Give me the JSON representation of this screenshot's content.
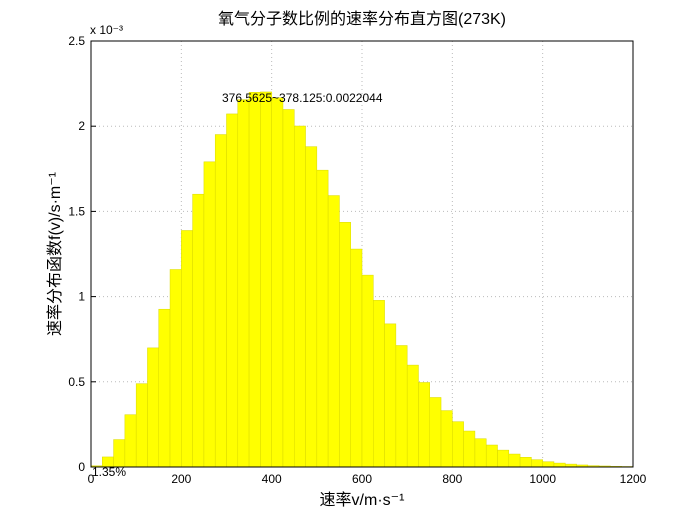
{
  "chart_data": {
    "type": "histogram",
    "title": "氧气分子数比例的速率分布直方图(273K)",
    "x_label": "速率v/m·s⁻¹",
    "y_label": "速率分布函数f(v)/s·m⁻¹",
    "y_multiplier": "x 10⁻³",
    "annotations": [
      "376.5625~378.125:0.0022044",
      "1.35%"
    ],
    "color": "#ffff00",
    "bins": [
      0,
      25,
      50,
      75,
      100,
      125,
      150,
      175,
      200,
      225,
      250,
      275,
      300,
      325,
      350,
      375,
      400,
      425,
      450,
      475,
      500,
      525,
      550,
      575,
      600,
      625,
      650,
      675,
      700,
      725,
      750,
      775,
      800,
      825,
      850,
      875,
      900,
      925,
      950,
      975,
      1000,
      1025,
      1050,
      1075,
      1100,
      1125,
      1150,
      1175,
      1200
    ],
    "values": [
      0.007,
      0.059,
      0.161,
      0.307,
      0.489,
      0.699,
      0.926,
      1.159,
      1.388,
      1.601,
      1.791,
      1.951,
      2.072,
      2.156,
      2.199,
      2.201,
      2.167,
      2.098,
      2.001,
      1.88,
      1.742,
      1.593,
      1.436,
      1.279,
      1.126,
      0.978,
      0.84,
      0.713,
      0.598,
      0.496,
      0.408,
      0.331,
      0.266,
      0.211,
      0.166,
      0.129,
      0.099,
      0.076,
      0.057,
      0.043,
      0.031,
      0.023,
      0.017,
      0.012,
      0.008,
      0.006,
      0.004,
      0.003
    ],
    "xlim": [
      0,
      1200
    ],
    "ylim": [
      0,
      2.5
    ],
    "xticks": [
      0,
      200,
      400,
      600,
      800,
      1000,
      1200
    ],
    "yticks": [
      0,
      0.5,
      1,
      1.5,
      2,
      2.5
    ],
    "grid": true
  }
}
